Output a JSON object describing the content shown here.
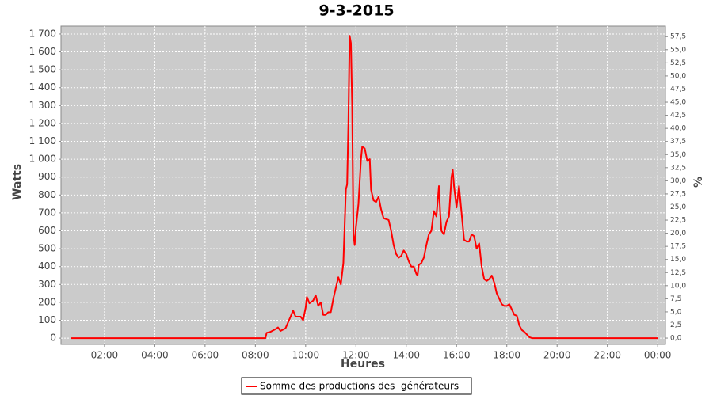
{
  "chart_data": {
    "type": "line",
    "title": "9-3-2015",
    "x_label": "Heures",
    "y_label": "Watts",
    "y2_label": "%",
    "grid": true,
    "legend": "bottom",
    "x": [
      0.68,
      8.4,
      8.45,
      8.6,
      8.8,
      8.9,
      9.0,
      9.2,
      9.4,
      9.5,
      9.6,
      9.8,
      9.9,
      10.0,
      10.05,
      10.15,
      10.3,
      10.4,
      10.5,
      10.6,
      10.7,
      10.8,
      10.9,
      11.0,
      11.1,
      11.2,
      11.3,
      11.4,
      11.5,
      11.6,
      11.65,
      11.7,
      11.75,
      11.8,
      11.85,
      11.9,
      11.95,
      12.0,
      12.1,
      12.2,
      12.25,
      12.35,
      12.45,
      12.55,
      12.6,
      12.7,
      12.8,
      12.9,
      13.0,
      13.1,
      13.3,
      13.4,
      13.5,
      13.6,
      13.7,
      13.8,
      13.9,
      14.0,
      14.1,
      14.2,
      14.3,
      14.4,
      14.45,
      14.5,
      14.6,
      14.7,
      14.8,
      14.9,
      15.0,
      15.1,
      15.2,
      15.3,
      15.35,
      15.4,
      15.5,
      15.6,
      15.7,
      15.8,
      15.85,
      15.9,
      16.0,
      16.1,
      16.2,
      16.3,
      16.4,
      16.5,
      16.6,
      16.7,
      16.8,
      16.9,
      17.0,
      17.1,
      17.2,
      17.3,
      17.4,
      17.5,
      17.6,
      17.7,
      17.8,
      17.9,
      18.0,
      18.1,
      18.2,
      18.3,
      18.4,
      18.5,
      18.6,
      18.7,
      18.8,
      18.9,
      19.0,
      24.0
    ],
    "series": [
      {
        "name": "Somme des productions des  générateurs",
        "color": "#ff0000",
        "values": [
          0,
          0,
          30,
          35,
          50,
          60,
          40,
          55,
          120,
          155,
          120,
          120,
          100,
          170,
          230,
          195,
          210,
          240,
          180,
          200,
          130,
          130,
          145,
          145,
          220,
          280,
          340,
          300,
          420,
          830,
          860,
          1200,
          1690,
          1650,
          1300,
          580,
          520,
          620,
          750,
          1000,
          1070,
          1060,
          990,
          1000,
          830,
          770,
          760,
          790,
          720,
          670,
          660,
          600,
          520,
          470,
          450,
          460,
          490,
          470,
          430,
          400,
          400,
          360,
          350,
          410,
          420,
          450,
          520,
          580,
          600,
          710,
          680,
          850,
          700,
          600,
          580,
          650,
          680,
          900,
          940,
          850,
          730,
          850,
          700,
          550,
          540,
          540,
          580,
          570,
          500,
          530,
          400,
          330,
          320,
          330,
          350,
          310,
          250,
          220,
          190,
          180,
          180,
          190,
          160,
          130,
          125,
          70,
          45,
          35,
          20,
          5,
          0,
          0
        ]
      }
    ],
    "xlim": [
      0.27,
      24.31
    ],
    "xticks": [
      {
        "value": 2,
        "label": "02:00"
      },
      {
        "value": 4,
        "label": "04:00"
      },
      {
        "value": 6,
        "label": "06:00"
      },
      {
        "value": 8,
        "label": "08:00"
      },
      {
        "value": 10,
        "label": "10:00"
      },
      {
        "value": 12,
        "label": "12:00"
      },
      {
        "value": 14,
        "label": "14:00"
      },
      {
        "value": 16,
        "label": "16:00"
      },
      {
        "value": 18,
        "label": "18:00"
      },
      {
        "value": 20,
        "label": "20:00"
      },
      {
        "value": 22,
        "label": "22:00"
      },
      {
        "value": 24,
        "label": "00:00"
      }
    ],
    "ylim": [
      -35,
      1744
    ],
    "yticks": [
      0,
      100,
      200,
      300,
      400,
      500,
      600,
      700,
      800,
      900,
      {
        "value": 1000,
        "label": "1 000"
      },
      {
        "value": 1100,
        "label": "1 100"
      },
      {
        "value": 1200,
        "label": "1 200"
      },
      {
        "value": 1300,
        "label": "1 300"
      },
      {
        "value": 1400,
        "label": "1 400"
      },
      {
        "value": 1500,
        "label": "1 500"
      },
      {
        "value": 1600,
        "label": "1 600"
      },
      {
        "value": 1700,
        "label": "1 700"
      }
    ],
    "y2lim": [
      -1.2,
      59.5
    ],
    "y2ticks": [
      {
        "value": 0,
        "label": "0,0"
      },
      {
        "value": 2.5,
        "label": "2,5"
      },
      {
        "value": 5,
        "label": "5,0"
      },
      {
        "value": 7.5,
        "label": "7,5"
      },
      {
        "value": 10,
        "label": "10,0"
      },
      {
        "value": 12.5,
        "label": "12,5"
      },
      {
        "value": 15,
        "label": "15,0"
      },
      {
        "value": 17.5,
        "label": "17,5"
      },
      {
        "value": 20,
        "label": "20,0"
      },
      {
        "value": 22.5,
        "label": "22,5"
      },
      {
        "value": 25,
        "label": "25,0"
      },
      {
        "value": 27.5,
        "label": "27,5"
      },
      {
        "value": 30,
        "label": "30,0"
      },
      {
        "value": 32.5,
        "label": "32,5"
      },
      {
        "value": 35,
        "label": "35,0"
      },
      {
        "value": 37.5,
        "label": "37,5"
      },
      {
        "value": 40,
        "label": "40,0"
      },
      {
        "value": 42.5,
        "label": "42,5"
      },
      {
        "value": 45,
        "label": "45,0"
      },
      {
        "value": 47.5,
        "label": "47,5"
      },
      {
        "value": 50,
        "label": "50,0"
      },
      {
        "value": 52.5,
        "label": "52,5"
      },
      {
        "value": 55,
        "label": "55,0"
      },
      {
        "value": 57.5,
        "label": "57,5"
      }
    ]
  }
}
